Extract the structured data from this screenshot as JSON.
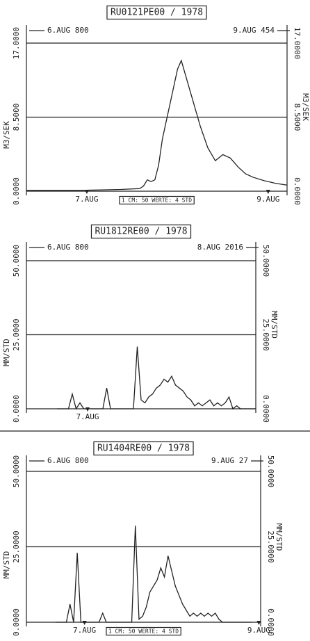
{
  "chart_data": [
    {
      "type": "line",
      "title": "RU0121PE00 / 1978",
      "start_label": "6.AUG 800",
      "end_label": "9.AUG 454",
      "y_label": "M3/SEK",
      "annotation": "1 CM: 50 WERTE: 4 STD",
      "color": "#222",
      "xlim": [
        0,
        69
      ],
      "ylim": [
        0,
        17
      ],
      "yticks": [
        {
          "value": 0,
          "label": "0.0000"
        },
        {
          "value": 8.5,
          "label": "8.5000"
        },
        {
          "value": 17,
          "label": "17.0000"
        }
      ],
      "xticks": [
        {
          "value": 16,
          "label": "7.AUG"
        },
        {
          "value": 64,
          "label": "9.AUG"
        }
      ],
      "x": [
        0,
        5,
        10,
        15,
        20,
        25,
        30,
        31,
        32,
        33,
        34,
        35,
        36,
        37,
        38,
        39,
        40,
        41,
        42,
        43,
        44,
        45,
        46,
        48,
        50,
        52,
        54,
        56,
        58,
        60,
        63,
        66,
        69
      ],
      "values": [
        0.1,
        0.1,
        0.1,
        0.1,
        0.15,
        0.2,
        0.3,
        0.6,
        1.3,
        1.1,
        1.3,
        3,
        6,
        8,
        10,
        12,
        14,
        15,
        13.5,
        12,
        10.5,
        9,
        7.5,
        5,
        3.5,
        4.2,
        3.8,
        2.8,
        2,
        1.6,
        1.2,
        0.9,
        0.7
      ]
    },
    {
      "type": "line",
      "title": "RU1812RE00 / 1978",
      "start_label": "6.AUG 800",
      "end_label": "8.AUG 2016",
      "y_label": "MM/STD",
      "color": "#222",
      "xlim": [
        0,
        60
      ],
      "ylim": [
        0,
        50
      ],
      "yticks": [
        {
          "value": 0,
          "label": "0.0000"
        },
        {
          "value": 25,
          "label": "25.0000"
        },
        {
          "value": 50,
          "label": "50.0000"
        }
      ],
      "xticks": [
        {
          "value": 16,
          "label": "7.AUG"
        }
      ],
      "x": [
        8,
        9,
        10,
        11,
        12,
        13,
        14,
        15,
        16,
        17,
        18,
        19,
        20,
        21,
        22,
        23,
        24,
        25,
        26,
        27,
        28,
        29,
        30,
        31,
        32,
        33,
        34,
        35,
        36,
        37,
        38,
        39,
        40,
        41,
        42,
        43,
        44,
        45,
        46,
        47,
        48,
        49,
        50,
        51,
        52,
        53,
        54,
        55,
        56,
        57,
        58,
        59,
        60
      ],
      "values": [
        0,
        0,
        0,
        0,
        5,
        0,
        2,
        0,
        0,
        0,
        0,
        0,
        0,
        7,
        0,
        0,
        0,
        0,
        0,
        0,
        0,
        21,
        3,
        2,
        4,
        5,
        7,
        8,
        10,
        9,
        11,
        8,
        7,
        6,
        4,
        3,
        1,
        2,
        1,
        2,
        3,
        1,
        2,
        1,
        2,
        4,
        0,
        1,
        0,
        0,
        0,
        0,
        0
      ]
    },
    {
      "type": "line",
      "title": "RU1404RE00 / 1978",
      "start_label": "6.AUG 800",
      "end_label": "9.AUG 27",
      "y_label": "MM/STD",
      "annotation": "1 CM: 50 WERTE: 4 STD",
      "color": "#222",
      "xlim": [
        0,
        64.5
      ],
      "ylim": [
        0,
        50
      ],
      "yticks": [
        {
          "value": 0,
          "label": "0.0000"
        },
        {
          "value": 25,
          "label": "25.0000"
        },
        {
          "value": 50,
          "label": "50.0000"
        }
      ],
      "xticks": [
        {
          "value": 16,
          "label": "7.AUG"
        },
        {
          "value": 64,
          "label": "9.AUG"
        }
      ],
      "x": [
        8,
        9,
        10,
        11,
        12,
        13,
        14,
        15,
        16,
        17,
        18,
        19,
        20,
        21,
        22,
        23,
        24,
        25,
        26,
        27,
        28,
        29,
        30,
        31,
        32,
        33,
        34,
        35,
        36,
        37,
        38,
        39,
        40,
        41,
        42,
        43,
        44,
        45,
        46,
        47,
        48,
        49,
        50,
        51,
        52,
        53,
        54,
        55,
        56,
        57,
        58,
        59,
        60,
        61,
        62
      ],
      "values": [
        0,
        0,
        0,
        0,
        6,
        0,
        23,
        0,
        0,
        0,
        0,
        0,
        0,
        3,
        0,
        0,
        0,
        0,
        0,
        0,
        0,
        0,
        32,
        1,
        2,
        5,
        10,
        12,
        14,
        18,
        15,
        22,
        17,
        12,
        9,
        6,
        4,
        2,
        3,
        2,
        3,
        2,
        3,
        2,
        3,
        1,
        0,
        0,
        0,
        0,
        0,
        0,
        0,
        0,
        0
      ]
    }
  ]
}
